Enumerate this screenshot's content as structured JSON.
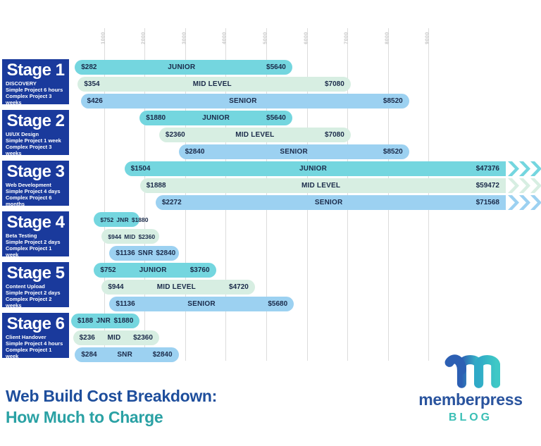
{
  "chart_data": {
    "type": "bar",
    "subtype": "horizontal-range-gantt",
    "title": "Web Build Cost Breakdown: How Much to Charge",
    "x_axis": {
      "ticks": [
        1000,
        2000,
        3000,
        4000,
        5000,
        6000,
        7000,
        8000,
        9000
      ],
      "range": [
        0,
        9000
      ],
      "grid": true,
      "unit": "$"
    },
    "colors": {
      "junior": "#74d6df",
      "mid": "#d7eee2",
      "senior": "#9cd1f1",
      "bar_text": "#1b2b4a",
      "stage_box": "#1a3a9c",
      "grid": "#dcdcdc",
      "tick": "#c6c6c6"
    },
    "stages": [
      {
        "stage": "Stage 1",
        "phase": "DISCOVERY",
        "lines": [
          "Simple Project 6 hours",
          "Complex Project 3 weeks"
        ],
        "bars": [
          {
            "level": "junior",
            "role": "JUNIOR",
            "min": 282,
            "max": 5640
          },
          {
            "level": "mid",
            "role": "MID LEVEL",
            "min": 354,
            "max": 7080
          },
          {
            "level": "senior",
            "role": "SENIOR",
            "min": 426,
            "max": 8520
          }
        ]
      },
      {
        "stage": "Stage 2",
        "phase": "UI/UX Design",
        "lines": [
          "Simple Project 1 week",
          "Complex Project 3 weeks"
        ],
        "bars": [
          {
            "level": "junior",
            "role": "JUNIOR",
            "min": 1880,
            "max": 5640
          },
          {
            "level": "mid",
            "role": "MID LEVEL",
            "min": 2360,
            "max": 7080
          },
          {
            "level": "senior",
            "role": "SENIOR",
            "min": 2840,
            "max": 8520
          }
        ]
      },
      {
        "stage": "Stage 3",
        "phase": "Web Development",
        "lines": [
          "Simple Project 4 days",
          "Complex Project 6 months"
        ],
        "bars": [
          {
            "level": "junior",
            "role": "JUNIOR",
            "min": 1504,
            "max": 47376
          },
          {
            "level": "mid",
            "role": "MID LEVEL",
            "min": 1888,
            "max": 59472
          },
          {
            "level": "senior",
            "role": "SENIOR",
            "min": 2272,
            "max": 71568
          }
        ]
      },
      {
        "stage": "Stage 4",
        "phase": "Beta Testing",
        "lines": [
          "Simple Project 2 days",
          "Complex Project 1 week"
        ],
        "bars": [
          {
            "level": "junior",
            "role": "JNR",
            "min": 752,
            "max": 1880
          },
          {
            "level": "mid",
            "role": "MID",
            "min": 944,
            "max": 2360
          },
          {
            "level": "senior",
            "role": "SNR",
            "min": 1136,
            "max": 2840
          }
        ]
      },
      {
        "stage": "Stage 5",
        "phase": "Content Upload",
        "lines": [
          "Simple Project 2 days",
          "Complex Project 2 weeks"
        ],
        "bars": [
          {
            "level": "junior",
            "role": "JUNIOR",
            "min": 752,
            "max": 3760
          },
          {
            "level": "mid",
            "role": "MID LEVEL",
            "min": 944,
            "max": 4720
          },
          {
            "level": "senior",
            "role": "SENIOR",
            "min": 1136,
            "max": 5680
          }
        ]
      },
      {
        "stage": "Stage 6",
        "phase": "Client Handover",
        "lines": [
          "Simple Project 4 hours",
          "Complex Project 1 week"
        ],
        "bars": [
          {
            "level": "junior",
            "role": "JNR",
            "min": 188,
            "max": 1880
          },
          {
            "level": "mid",
            "role": "MID",
            "min": 236,
            "max": 2360
          },
          {
            "level": "senior",
            "role": "SNR",
            "min": 284,
            "max": 2840
          }
        ]
      }
    ]
  },
  "footer": {
    "title_line1": "Web Build Cost Breakdown:",
    "title_line2": "How Much to Charge",
    "title_line1_color": "#1e4e9c",
    "title_line2_color": "#2aa1a4"
  },
  "brand": {
    "name": "memberpress",
    "sub": "BLOG",
    "name_color": "#2a549e",
    "sub_color": "#3bbfb6",
    "logo_colors": {
      "left": "#2c5fb3",
      "middle": "#2fa9c7",
      "right": "#3fc8c6"
    }
  }
}
